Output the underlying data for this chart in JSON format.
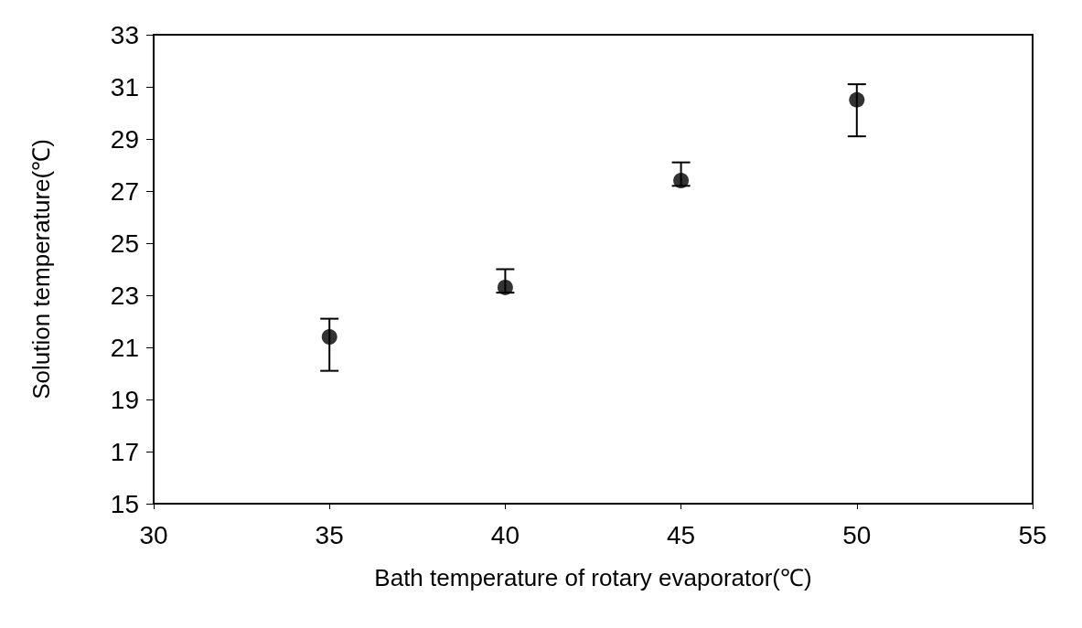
{
  "chart_data": {
    "type": "scatter",
    "xlabel": "Bath temperature of rotary evaporator(℃)",
    "ylabel": "Solution temperature(℃)",
    "x": [
      35,
      40,
      45,
      50
    ],
    "values": [
      21.4,
      23.3,
      27.4,
      30.5
    ],
    "errors": [
      [
        20.1,
        22.1
      ],
      [
        23.1,
        24.0
      ],
      [
        27.2,
        28.1
      ],
      [
        29.1,
        31.1
      ]
    ],
    "color": "#000000",
    "marker": "circle",
    "xlim": [
      30,
      55
    ],
    "xticks": [
      30,
      35,
      40,
      45,
      50,
      55
    ],
    "ylim": [
      15,
      33
    ],
    "yticks": [
      15,
      17,
      19,
      21,
      23,
      25,
      27,
      29,
      31,
      33
    ]
  }
}
